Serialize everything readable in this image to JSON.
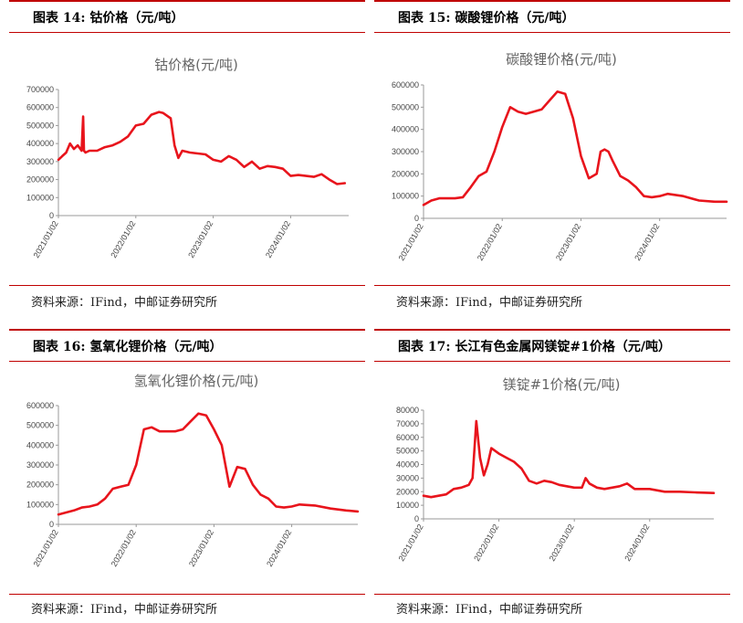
{
  "panels": [
    {
      "fig_label": "图表 14:  钴价格（元/吨）",
      "source": "资料来源：IFind，中邮证券研究所",
      "chart_data": {
        "type": "line",
        "title": "钴价格(元/吨)",
        "ylim": [
          0,
          700000
        ],
        "yticks": [
          0,
          100000,
          200000,
          300000,
          400000,
          500000,
          600000,
          700000
        ],
        "xlim": [
          2021.0,
          2024.75
        ],
        "xticks": [
          {
            "x": 2021.0,
            "label": "2021/01/02"
          },
          {
            "x": 2022.0,
            "label": "2022/01/02"
          },
          {
            "x": 2023.0,
            "label": "2023/01/02"
          },
          {
            "x": 2024.0,
            "label": "2024/01/02"
          }
        ],
        "color": "#e8141c",
        "x": [
          2021.0,
          2021.05,
          2021.1,
          2021.15,
          2021.2,
          2021.25,
          2021.3,
          2021.32,
          2021.33,
          2021.35,
          2021.4,
          2021.5,
          2021.6,
          2021.7,
          2021.8,
          2021.9,
          2022.0,
          2022.1,
          2022.2,
          2022.3,
          2022.35,
          2022.45,
          2022.5,
          2022.55,
          2022.6,
          2022.7,
          2022.8,
          2022.9,
          2023.0,
          2023.1,
          2023.2,
          2023.3,
          2023.4,
          2023.5,
          2023.6,
          2023.7,
          2023.8,
          2023.9,
          2024.0,
          2024.1,
          2024.2,
          2024.3,
          2024.4,
          2024.5,
          2024.6,
          2024.7
        ],
        "y": [
          310000,
          330000,
          350000,
          400000,
          370000,
          390000,
          360000,
          550000,
          360000,
          350000,
          360000,
          360000,
          380000,
          390000,
          410000,
          440000,
          500000,
          510000,
          560000,
          575000,
          570000,
          540000,
          390000,
          320000,
          360000,
          350000,
          345000,
          340000,
          310000,
          300000,
          330000,
          310000,
          270000,
          300000,
          260000,
          275000,
          270000,
          260000,
          220000,
          225000,
          220000,
          215000,
          230000,
          200000,
          175000,
          180000
        ]
      }
    },
    {
      "fig_label": "图表 15:  碳酸锂价格（元/吨）",
      "source": "资料来源：IFind，中邮证券研究所",
      "chart_data": {
        "type": "line",
        "title": "碳酸锂价格(元/吨)",
        "ylim": [
          0,
          600000
        ],
        "yticks": [
          0,
          100000,
          200000,
          300000,
          400000,
          500000,
          600000
        ],
        "xlim": [
          2021.0,
          2024.85
        ],
        "xticks": [
          {
            "x": 2021.0,
            "label": "2021/01/02"
          },
          {
            "x": 2022.0,
            "label": "2022/01/02"
          },
          {
            "x": 2023.0,
            "label": "2023/01/02"
          },
          {
            "x": 2024.0,
            "label": "2024/01/02"
          }
        ],
        "color": "#e8141c",
        "x": [
          2021.0,
          2021.1,
          2021.2,
          2021.3,
          2021.4,
          2021.5,
          2021.6,
          2021.7,
          2021.8,
          2021.9,
          2022.0,
          2022.1,
          2022.2,
          2022.3,
          2022.4,
          2022.5,
          2022.6,
          2022.7,
          2022.8,
          2022.9,
          2023.0,
          2023.1,
          2023.2,
          2023.25,
          2023.3,
          2023.35,
          2023.4,
          2023.5,
          2023.6,
          2023.7,
          2023.8,
          2023.9,
          2024.0,
          2024.1,
          2024.3,
          2024.5,
          2024.7,
          2024.85
        ],
        "y": [
          60000,
          80000,
          90000,
          90000,
          90000,
          95000,
          140000,
          190000,
          210000,
          300000,
          410000,
          500000,
          480000,
          470000,
          480000,
          490000,
          530000,
          570000,
          560000,
          450000,
          280000,
          180000,
          200000,
          300000,
          310000,
          300000,
          260000,
          190000,
          170000,
          140000,
          100000,
          95000,
          100000,
          110000,
          100000,
          80000,
          75000,
          75000
        ]
      }
    },
    {
      "fig_label": "图表 16:  氢氧化锂价格（元/吨）",
      "source": "资料来源：IFind，中邮证券研究所",
      "chart_data": {
        "type": "line",
        "title": "氢氧化锂价格(元/吨)",
        "ylim": [
          0,
          600000
        ],
        "yticks": [
          0,
          100000,
          200000,
          300000,
          400000,
          500000,
          600000
        ],
        "xlim": [
          2021.0,
          2024.85
        ],
        "xticks": [
          {
            "x": 2021.0,
            "label": "2021/01/02"
          },
          {
            "x": 2022.0,
            "label": "2022/01/02"
          },
          {
            "x": 2023.0,
            "label": "2023/01/02"
          },
          {
            "x": 2024.0,
            "label": "2024/01/02"
          }
        ],
        "color": "#e8141c",
        "x": [
          2021.0,
          2021.1,
          2021.2,
          2021.3,
          2021.4,
          2021.5,
          2021.6,
          2021.7,
          2021.8,
          2021.9,
          2022.0,
          2022.1,
          2022.2,
          2022.3,
          2022.4,
          2022.5,
          2022.6,
          2022.7,
          2022.8,
          2022.9,
          2023.0,
          2023.1,
          2023.2,
          2023.3,
          2023.4,
          2023.5,
          2023.6,
          2023.7,
          2023.8,
          2023.9,
          2024.0,
          2024.1,
          2024.3,
          2024.5,
          2024.7,
          2024.85
        ],
        "y": [
          50000,
          60000,
          70000,
          85000,
          90000,
          100000,
          130000,
          180000,
          190000,
          200000,
          300000,
          480000,
          490000,
          470000,
          470000,
          470000,
          480000,
          520000,
          560000,
          550000,
          480000,
          400000,
          190000,
          290000,
          280000,
          200000,
          150000,
          130000,
          90000,
          85000,
          90000,
          100000,
          95000,
          80000,
          70000,
          65000
        ]
      }
    },
    {
      "fig_label": "图表 17:  长江有色金属网镁锭#1价格（元/吨）",
      "source": "资料来源：IFind，中邮证券研究所",
      "chart_data": {
        "type": "line",
        "title": "镁锭#1价格(元/吨)",
        "ylim": [
          0,
          80000
        ],
        "yticks": [
          0,
          10000,
          20000,
          30000,
          40000,
          50000,
          60000,
          70000,
          80000
        ],
        "xlim": [
          2021.0,
          2024.85
        ],
        "xticks": [
          {
            "x": 2021.0,
            "label": "2021/01/02"
          },
          {
            "x": 2022.0,
            "label": "2022/01/02"
          },
          {
            "x": 2023.0,
            "label": "2023/01/02"
          },
          {
            "x": 2024.0,
            "label": "2024/01/02"
          }
        ],
        "color": "#e8141c",
        "x": [
          2021.0,
          2021.1,
          2021.2,
          2021.3,
          2021.4,
          2021.5,
          2021.6,
          2021.65,
          2021.7,
          2021.75,
          2021.8,
          2021.85,
          2021.9,
          2022.0,
          2022.1,
          2022.2,
          2022.3,
          2022.4,
          2022.5,
          2022.6,
          2022.7,
          2022.8,
          2022.9,
          2023.0,
          2023.1,
          2023.15,
          2023.2,
          2023.3,
          2023.4,
          2023.5,
          2023.6,
          2023.7,
          2023.8,
          2024.0,
          2024.2,
          2024.4,
          2024.6,
          2024.85
        ],
        "y": [
          17000,
          16000,
          17000,
          18000,
          22000,
          23000,
          25000,
          30000,
          72000,
          45000,
          32000,
          40000,
          52000,
          48000,
          45000,
          42000,
          37000,
          28000,
          26000,
          28000,
          27000,
          25000,
          24000,
          23000,
          23000,
          30000,
          26000,
          23000,
          22000,
          23000,
          24000,
          26000,
          22000,
          22000,
          20000,
          20000,
          19500,
          19000
        ]
      }
    }
  ]
}
